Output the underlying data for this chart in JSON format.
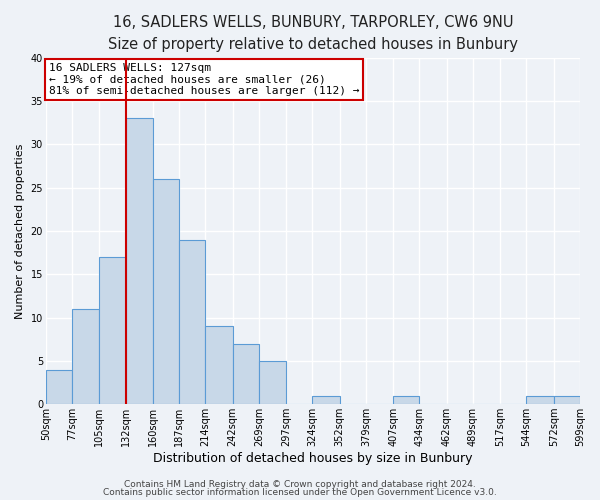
{
  "title": "16, SADLERS WELLS, BUNBURY, TARPORLEY, CW6 9NU",
  "subtitle": "Size of property relative to detached houses in Bunbury",
  "xlabel": "Distribution of detached houses by size in Bunbury",
  "ylabel": "Number of detached properties",
  "bin_edges": [
    50,
    77,
    105,
    132,
    160,
    187,
    214,
    242,
    269,
    297,
    324,
    352,
    379,
    407,
    434,
    462,
    489,
    517,
    544,
    572,
    599
  ],
  "counts": [
    4,
    11,
    17,
    33,
    26,
    19,
    9,
    7,
    5,
    0,
    1,
    0,
    0,
    1,
    0,
    0,
    0,
    0,
    1,
    1
  ],
  "bar_color": "#c8d8e8",
  "bar_edge_color": "#5b9bd5",
  "vline_color": "#cc0000",
  "property_bin_index": 3,
  "annotation_line1": "16 SADLERS WELLS: 127sqm",
  "annotation_line2": "← 19% of detached houses are smaller (26)",
  "annotation_line3": "81% of semi-detached houses are larger (112) →",
  "annotation_box_facecolor": "#ffffff",
  "annotation_box_edgecolor": "#cc0000",
  "ylim": [
    0,
    40
  ],
  "yticks": [
    0,
    5,
    10,
    15,
    20,
    25,
    30,
    35,
    40
  ],
  "tick_labels": [
    "50sqm",
    "77sqm",
    "105sqm",
    "132sqm",
    "160sqm",
    "187sqm",
    "214sqm",
    "242sqm",
    "269sqm",
    "297sqm",
    "324sqm",
    "352sqm",
    "379sqm",
    "407sqm",
    "434sqm",
    "462sqm",
    "489sqm",
    "517sqm",
    "544sqm",
    "572sqm",
    "599sqm"
  ],
  "footer_line1": "Contains HM Land Registry data © Crown copyright and database right 2024.",
  "footer_line2": "Contains public sector information licensed under the Open Government Licence v3.0.",
  "background_color": "#eef2f7",
  "grid_color": "#ffffff",
  "title_fontsize": 10.5,
  "subtitle_fontsize": 9.5,
  "xlabel_fontsize": 9,
  "ylabel_fontsize": 8,
  "tick_fontsize": 7,
  "annotation_fontsize": 8,
  "footer_fontsize": 6.5
}
